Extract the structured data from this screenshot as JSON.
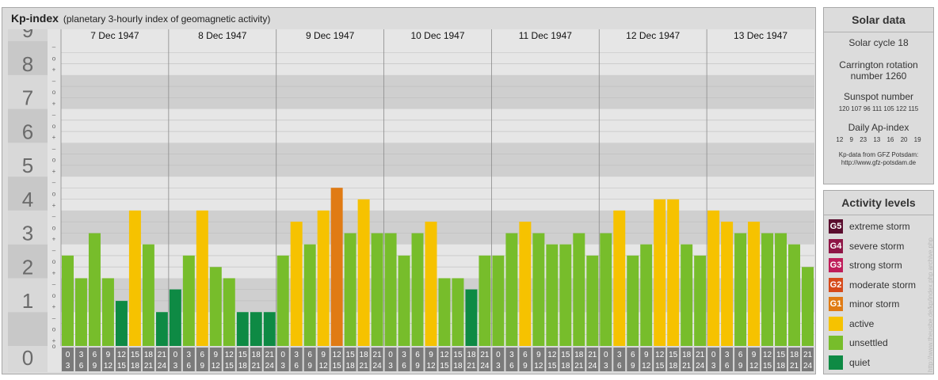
{
  "header": {
    "title": "Kp-index",
    "subtitle": "(planetary 3-hourly index of geomagnetic activity)"
  },
  "y_axis": {
    "labels": [
      "0",
      "1",
      "2",
      "3",
      "4",
      "5",
      "6",
      "7",
      "8",
      "9"
    ],
    "minor": [
      "+",
      "o",
      "–"
    ]
  },
  "days": [
    "7 Dec 1947",
    "8 Dec 1947",
    "9 Dec 1947",
    "10 Dec 1947",
    "11 Dec 1947",
    "12 Dec 1947",
    "13 Dec 1947"
  ],
  "time_slots": [
    [
      "0",
      "3"
    ],
    [
      "3",
      "6"
    ],
    [
      "6",
      "9"
    ],
    [
      "9",
      "12"
    ],
    [
      "12",
      "15"
    ],
    [
      "15",
      "18"
    ],
    [
      "18",
      "21"
    ],
    [
      "21",
      "24"
    ]
  ],
  "chart_data": {
    "type": "bar",
    "title": "Kp-index",
    "ylim": [
      0,
      9
    ],
    "categories": [
      "7 Dec 1947",
      "8 Dec 1947",
      "9 Dec 1947",
      "10 Dec 1947",
      "11 Dec 1947",
      "12 Dec 1947",
      "13 Dec 1947"
    ],
    "values": [
      [
        2.67,
        2.0,
        3.33,
        2.0,
        1.33,
        4.0,
        3.0,
        1.0
      ],
      [
        1.67,
        2.67,
        4.0,
        2.33,
        2.0,
        1.0,
        1.0,
        1.0
      ],
      [
        2.67,
        3.67,
        3.0,
        4.0,
        4.67,
        3.33,
        4.33,
        3.33
      ],
      [
        3.33,
        2.67,
        3.33,
        3.67,
        2.0,
        2.0,
        1.67,
        2.67
      ],
      [
        2.67,
        3.33,
        3.67,
        3.33,
        3.0,
        3.0,
        3.33,
        2.67
      ],
      [
        3.33,
        4.0,
        2.67,
        3.0,
        4.33,
        4.33,
        3.0,
        2.67
      ],
      [
        4.0,
        3.67,
        3.33,
        3.67,
        3.33,
        3.33,
        3.0,
        2.33
      ]
    ],
    "colors": {
      "quiet": "#0e8a44",
      "unsettled": "#77bd2b",
      "active": "#f6c200",
      "g1": "#e07b14",
      "g2": "#d64a1b",
      "g3": "#bf1d5a",
      "g4": "#8e1646",
      "g5": "#5a0d2e"
    },
    "legend_position": "right"
  },
  "solar": {
    "title": "Solar data",
    "cycle": "Solar cycle 18",
    "carrington": "Carrington rotation number 1260",
    "sunspot_title": "Sunspot number",
    "sunspot_values": "120 107 96 111 105 122 115",
    "ap_title": "Daily Ap-index",
    "ap_values": "12 9 23 13 16 20 19",
    "credit1": "Kp-data from GFZ Potsdam:",
    "credit2": "http://www.gfz-potsdam.de"
  },
  "activity": {
    "title": "Activity levels",
    "items": [
      {
        "badge": "G5",
        "label": "extreme storm",
        "color": "#5a0d2e"
      },
      {
        "badge": "G4",
        "label": "severe storm",
        "color": "#8e1646"
      },
      {
        "badge": "G3",
        "label": "strong storm",
        "color": "#bf1d5a"
      },
      {
        "badge": "G2",
        "label": "moderate storm",
        "color": "#d64a1b"
      },
      {
        "badge": "G1",
        "label": "minor storm",
        "color": "#e07b14"
      },
      {
        "badge": "",
        "label": "active",
        "color": "#f6c200"
      },
      {
        "badge": "",
        "label": "unsettled",
        "color": "#77bd2b"
      },
      {
        "badge": "",
        "label": "quiet",
        "color": "#0e8a44"
      }
    ]
  },
  "watermark": "http://www.theusbe.de/kp/index.php archive.php"
}
